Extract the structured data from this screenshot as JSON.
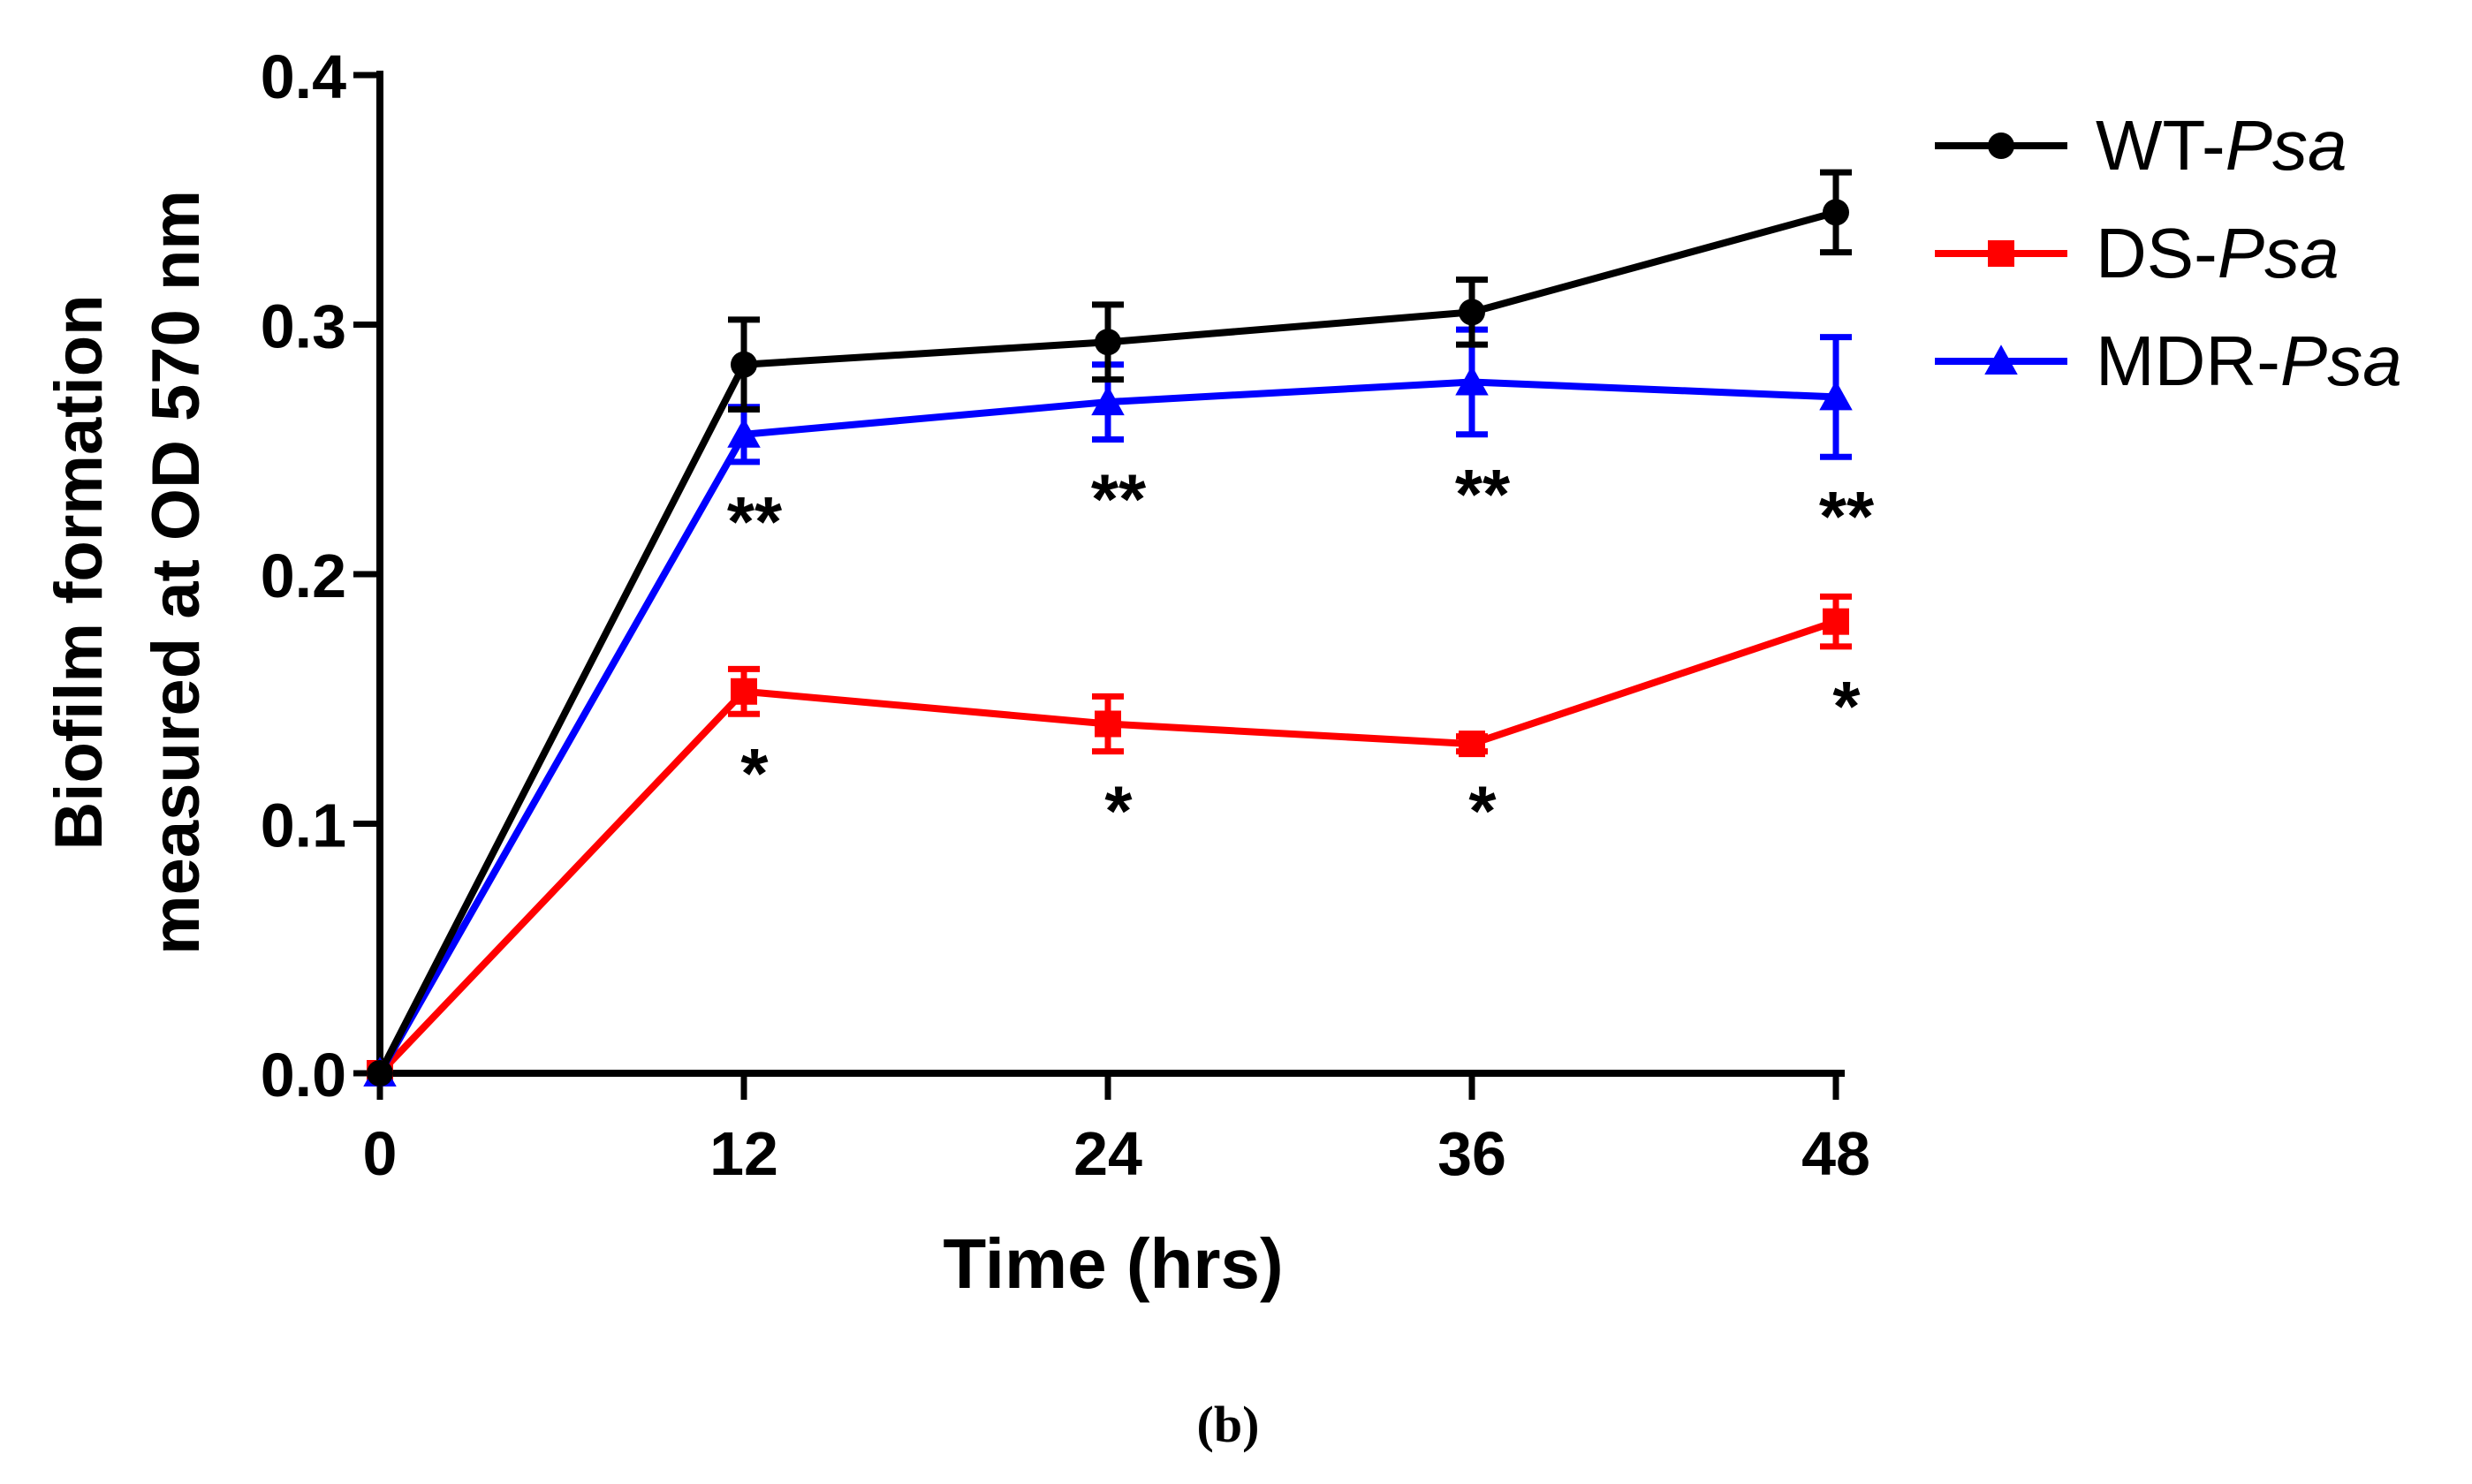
{
  "chart_data": {
    "type": "line",
    "xlabel": "Time (hrs)",
    "ylabel_lines": [
      "Biofilm formation",
      "measured at OD 570 nm"
    ],
    "x": [
      0,
      12,
      24,
      36,
      48
    ],
    "x_ticks": [
      "0",
      "12",
      "24",
      "36",
      "48"
    ],
    "y_ticks": [
      "0.0",
      "0.1",
      "0.2",
      "0.3",
      "0.4"
    ],
    "ylim": [
      0,
      0.4
    ],
    "xlim": [
      0,
      48
    ],
    "legend_position": "top-right",
    "series": [
      {
        "name_prefix": "WT-",
        "name_italic": "Psa",
        "color": "#000000",
        "marker": "circle",
        "values": [
          0,
          0.284,
          0.293,
          0.305,
          0.345
        ],
        "errors": [
          0,
          0.018,
          0.015,
          0.013,
          0.016
        ]
      },
      {
        "name_prefix": "DS-",
        "name_italic": "Psa",
        "color": "#ff0000",
        "marker": "square",
        "values": [
          0,
          0.153,
          0.14,
          0.132,
          0.181
        ],
        "errors": [
          0,
          0.009,
          0.011,
          0.003,
          0.01
        ],
        "annotations": [
          "",
          "*",
          "*",
          "*",
          "*"
        ]
      },
      {
        "name_prefix": "MDR-",
        "name_italic": "Psa",
        "color": "#0000ff",
        "marker": "triangle",
        "values": [
          0,
          0.256,
          0.269,
          0.277,
          0.271
        ],
        "errors": [
          0,
          0.011,
          0.015,
          0.021,
          0.024
        ],
        "annotations": [
          "",
          "**",
          "**",
          "**",
          "**"
        ]
      }
    ]
  },
  "caption": "(b)"
}
